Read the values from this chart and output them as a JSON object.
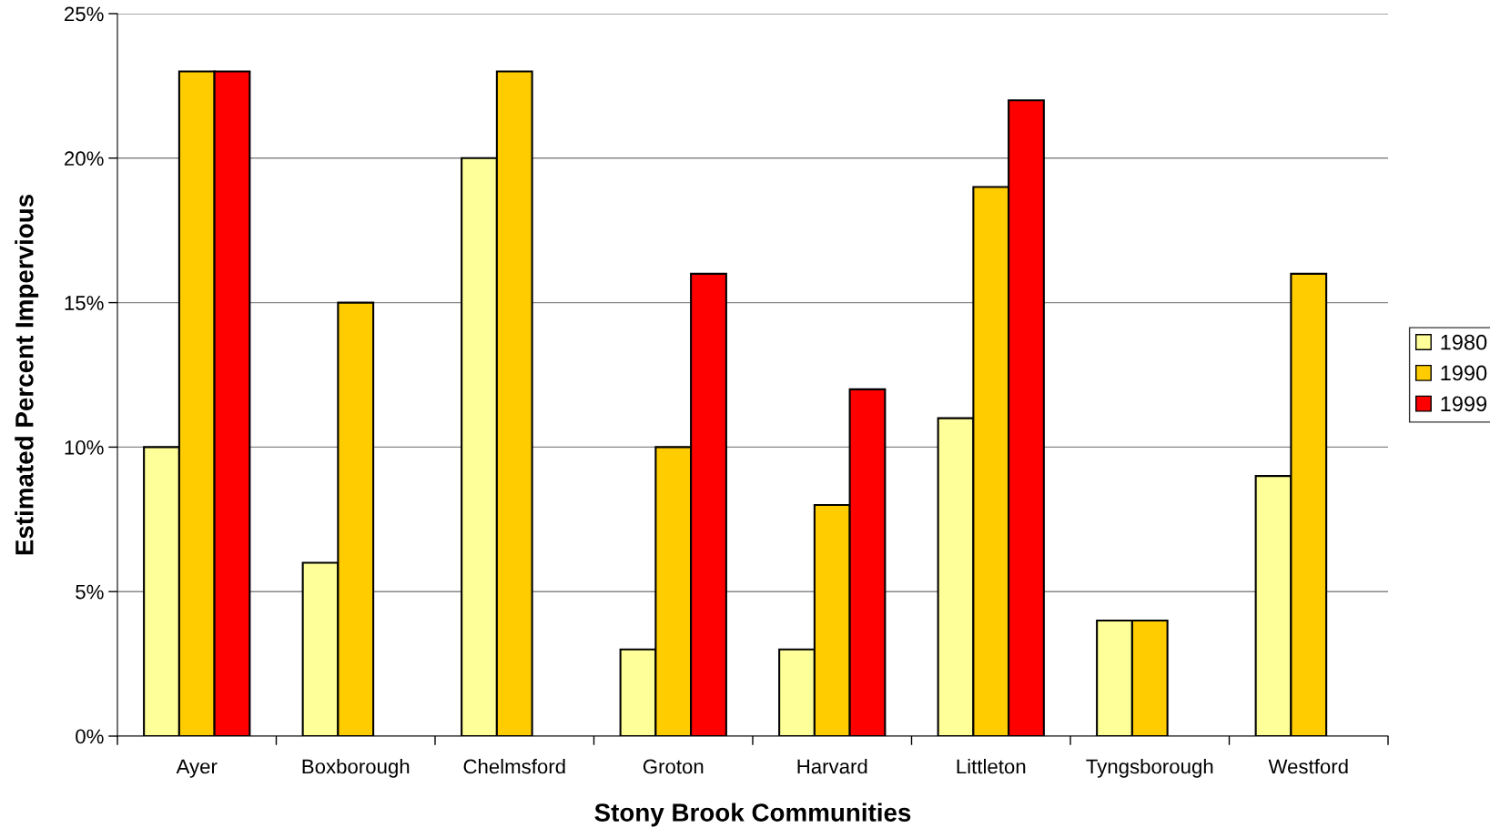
{
  "chart_data": {
    "type": "bar",
    "xlabel": "Stony Brook Communities",
    "ylabel": "Estimated Percent Impervious",
    "categories": [
      "Ayer",
      "Boxborough",
      "Chelmsford",
      "Groton",
      "Harvard",
      "Littleton",
      "Tyngsborough",
      "Westford"
    ],
    "series": [
      {
        "name": "1980",
        "color": "#ffff99",
        "values": [
          10,
          6,
          20,
          3,
          3,
          11,
          4,
          9
        ]
      },
      {
        "name": "1990",
        "color": "#ffcc00",
        "values": [
          23,
          15,
          23,
          10,
          8,
          19,
          4,
          16
        ]
      },
      {
        "name": "1999",
        "color": "#ff0000",
        "values": [
          23,
          null,
          null,
          16,
          12,
          22,
          null,
          null
        ]
      }
    ],
    "ylim": [
      0,
      25
    ],
    "yticks": [
      {
        "value": 0,
        "label": "0%"
      },
      {
        "value": 5,
        "label": "5%"
      },
      {
        "value": 10,
        "label": "10%"
      },
      {
        "value": 15,
        "label": "15%"
      },
      {
        "value": 20,
        "label": "20%"
      },
      {
        "value": 25,
        "label": "25%"
      }
    ],
    "grid": "y",
    "legend": "right"
  }
}
